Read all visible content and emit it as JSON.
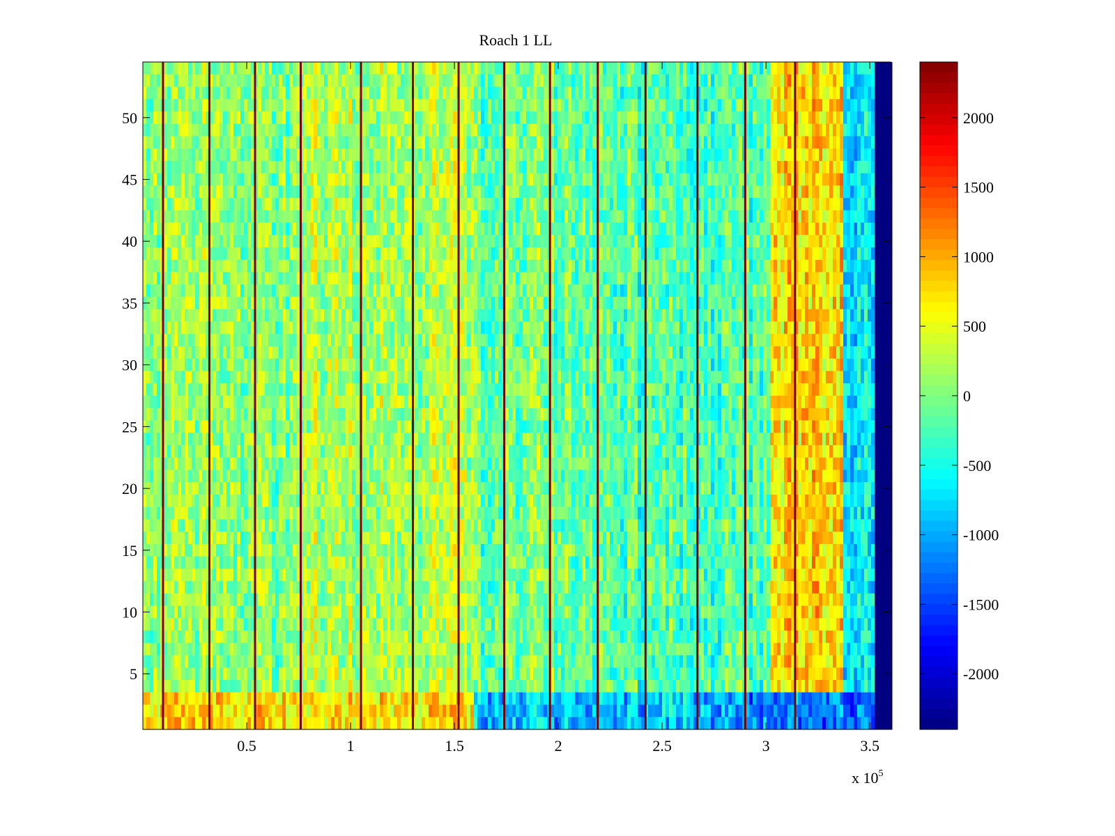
{
  "chart_data": {
    "type": "heatmap",
    "title": "Roach 1 LL",
    "xlabel": "",
    "ylabel": "",
    "x_multiplier_label": "x 10",
    "x_multiplier_exponent": "5",
    "xlim": [
      0,
      3.6
    ],
    "ylim": [
      0.5,
      54.5
    ],
    "x_ticks": [
      0.5,
      1,
      1.5,
      2,
      2.5,
      3,
      3.5
    ],
    "x_tick_labels": [
      "0.5",
      "1",
      "1.5",
      "2",
      "2.5",
      "3",
      "3.5"
    ],
    "y_ticks": [
      5,
      10,
      15,
      20,
      25,
      30,
      35,
      40,
      45,
      50
    ],
    "y_tick_labels": [
      "5",
      "10",
      "15",
      "20",
      "25",
      "30",
      "35",
      "40",
      "45",
      "50"
    ],
    "n_rows": 54,
    "colormap": "jet",
    "clim": [
      -2400,
      2400
    ],
    "colorbar_ticks": [
      2000,
      1500,
      1000,
      500,
      0,
      -500,
      -1000,
      -1500,
      -2000
    ],
    "colorbar_tick_labels": [
      "2000",
      "1500",
      "1000",
      "500",
      "0",
      "-500",
      "-1000",
      "-1500",
      "-2000"
    ],
    "vertical_dark_lines_x": [
      0.097,
      0.32,
      0.54,
      0.76,
      1.05,
      1.3,
      1.52,
      1.74,
      1.96,
      2.19,
      2.42,
      2.67,
      2.9,
      3.14
    ],
    "regions": [
      {
        "x": [
          0.0,
          0.78
        ],
        "rows": [
          4,
          54
        ],
        "mean": 50
      },
      {
        "x": [
          0.78,
          1.6
        ],
        "rows": [
          4,
          54
        ],
        "mean": 200
      },
      {
        "x": [
          1.6,
          2.2
        ],
        "rows": [
          4,
          54
        ],
        "mean": -100
      },
      {
        "x": [
          2.2,
          3.02
        ],
        "rows": [
          4,
          54
        ],
        "mean": -250
      },
      {
        "x": [
          3.02,
          3.37
        ],
        "rows": [
          4,
          54
        ],
        "mean": 800
      },
      {
        "x": [
          3.37,
          3.53
        ],
        "rows": [
          4,
          54
        ],
        "mean": -600
      },
      {
        "x": [
          0.0,
          1.6
        ],
        "rows": [
          1,
          3
        ],
        "mean": 750
      },
      {
        "x": [
          1.6,
          2.8
        ],
        "rows": [
          1,
          3
        ],
        "mean": -900
      },
      {
        "x": [
          2.8,
          3.53
        ],
        "rows": [
          1,
          3
        ],
        "mean": -1200
      },
      {
        "x": [
          3.53,
          3.6
        ],
        "rows": [
          1,
          54
        ],
        "mean": -2400
      }
    ]
  }
}
